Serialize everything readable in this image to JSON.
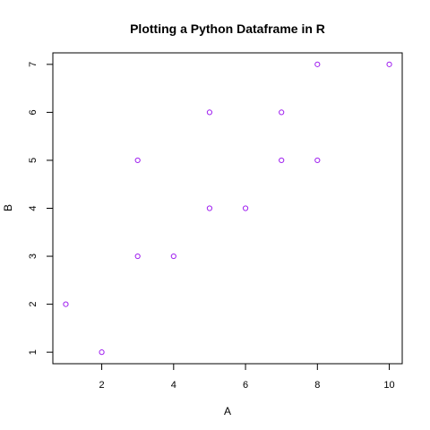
{
  "chart_data": {
    "type": "scatter",
    "title": "Plotting a Python Dataframe in R",
    "xlabel": "A",
    "ylabel": "B",
    "xlim": [
      0.64,
      10.36
    ],
    "ylim": [
      0.76,
      7.24
    ],
    "xticks": [
      2,
      4,
      6,
      8,
      10
    ],
    "yticks": [
      1,
      2,
      3,
      4,
      5,
      6,
      7
    ],
    "point_color": "#a020f0",
    "points": [
      {
        "x": 1,
        "y": 2
      },
      {
        "x": 2,
        "y": 1
      },
      {
        "x": 3,
        "y": 5
      },
      {
        "x": 3,
        "y": 3
      },
      {
        "x": 4,
        "y": 3
      },
      {
        "x": 5,
        "y": 6
      },
      {
        "x": 5,
        "y": 4
      },
      {
        "x": 6,
        "y": 4
      },
      {
        "x": 7,
        "y": 6
      },
      {
        "x": 7,
        "y": 5
      },
      {
        "x": 8,
        "y": 7
      },
      {
        "x": 8,
        "y": 5
      },
      {
        "x": 10,
        "y": 7
      }
    ]
  }
}
